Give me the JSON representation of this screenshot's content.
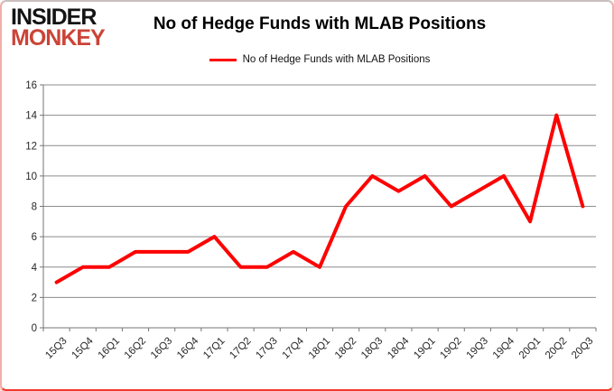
{
  "logo": {
    "line1": "INSIDER",
    "line2": "MONKEY"
  },
  "header": {
    "title": "No of Hedge Funds with MLAB Positions"
  },
  "legend": {
    "label": "No of Hedge Funds with MLAB Positions"
  },
  "colors": {
    "line": "#fe0000",
    "logo_red": "#cb4437",
    "grid": "#8c8c8c",
    "axis": "#757575",
    "tick_text": "#262626"
  },
  "chart_data": {
    "type": "line",
    "title": "No of Hedge Funds with MLAB Positions",
    "xlabel": "",
    "ylabel": "",
    "ylim": [
      0,
      16
    ],
    "y_ticks": [
      0,
      2,
      4,
      6,
      8,
      10,
      12,
      14,
      16
    ],
    "grid": true,
    "legend_position": "top",
    "categories": [
      "15Q3",
      "15Q4",
      "16Q1",
      "16Q2",
      "16Q3",
      "16Q4",
      "17Q1",
      "17Q2",
      "17Q3",
      "17Q4",
      "18Q1",
      "18Q2",
      "18Q3",
      "18Q4",
      "19Q1",
      "19Q2",
      "19Q3",
      "19Q4",
      "20Q1",
      "20Q2",
      "20Q3"
    ],
    "series": [
      {
        "name": "No of Hedge Funds with MLAB Positions",
        "values": [
          3,
          4,
          4,
          5,
          5,
          5,
          6,
          4,
          4,
          5,
          4,
          8,
          10,
          9,
          10,
          8,
          9,
          10,
          7,
          14,
          8
        ]
      }
    ]
  }
}
